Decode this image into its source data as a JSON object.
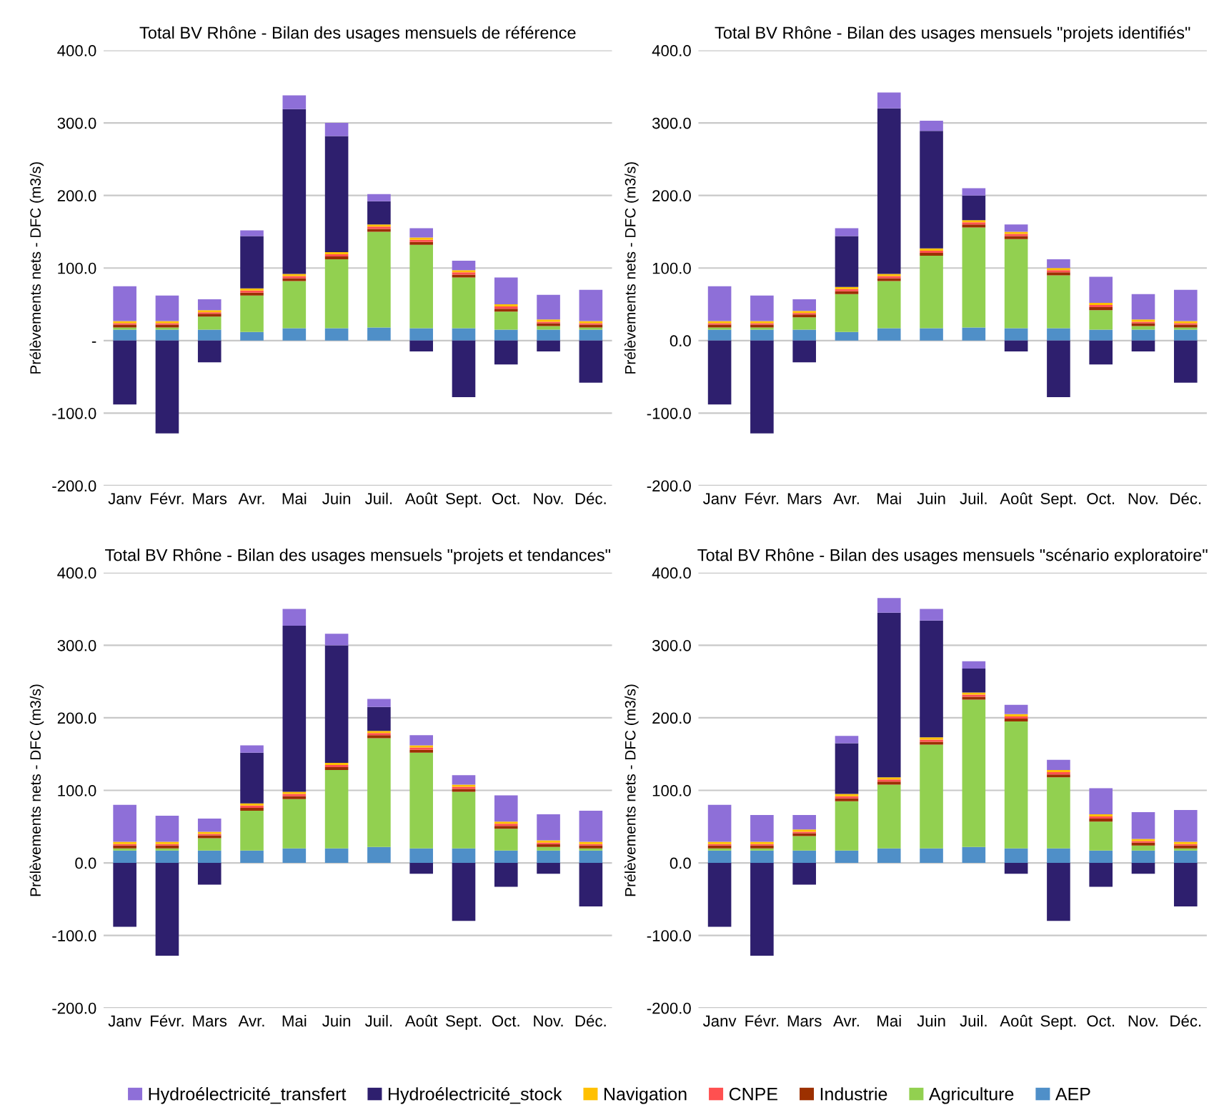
{
  "chart_data": [
    {
      "type": "bar",
      "stacked": true,
      "title": "Total BV Rhône - Bilan des usages mensuels de référence",
      "ylabel": "Prélèvements nets - DFC (m3/s)",
      "categories": [
        "Janv",
        "Févr.",
        "Mars",
        "Avr.",
        "Mai",
        "Juin",
        "Juil.",
        "Août",
        "Sept.",
        "Oct.",
        "Nov.",
        "Déc."
      ],
      "ylim": [
        -200,
        400
      ],
      "yticks": [
        {
          "value": -200,
          "label": "-200.0"
        },
        {
          "value": -100,
          "label": "-100.0"
        },
        {
          "value": 0,
          "label": "-"
        },
        {
          "value": 100,
          "label": "100.0"
        },
        {
          "value": 200,
          "label": "200.0"
        },
        {
          "value": 300,
          "label": "300.0"
        },
        {
          "value": 400,
          "label": "400.0"
        }
      ],
      "grid": "y",
      "series": [
        {
          "color": "#4f8fc8",
          "values": [
            15,
            15,
            15,
            12,
            17,
            17,
            18,
            17,
            17,
            15,
            15,
            15
          ]
        },
        {
          "color": "#92d050",
          "values": [
            3,
            3,
            18,
            50,
            65,
            95,
            132,
            115,
            70,
            25,
            5,
            3
          ]
        },
        {
          "color": "#9c3000",
          "values": [
            4,
            4,
            4,
            4,
            4,
            4,
            4,
            4,
            4,
            4,
            4,
            4
          ]
        },
        {
          "color": "#ff5050",
          "values": [
            2,
            2,
            2,
            3,
            3,
            3,
            3,
            3,
            3,
            3,
            2,
            2
          ]
        },
        {
          "color": "#ffc000",
          "values": [
            3,
            3,
            3,
            3,
            3,
            3,
            3,
            3,
            3,
            3,
            3,
            3
          ]
        },
        {
          "color": "#2e1f6e",
          "values": [
            -88,
            -128,
            -30,
            72,
            227,
            160,
            32,
            -15,
            -78,
            -33,
            -15,
            -58
          ]
        },
        {
          "color": "#8e6fd8",
          "values": [
            48,
            35,
            15,
            8,
            19,
            18,
            10,
            13,
            13,
            37,
            34,
            43
          ]
        }
      ]
    },
    {
      "type": "bar",
      "stacked": true,
      "title": "Total BV Rhône - Bilan des usages mensuels \"projets identifiés\"",
      "ylabel": "Prélèvements nets - DFC (m3/s)",
      "categories": [
        "Janv",
        "Févr.",
        "Mars",
        "Avr.",
        "Mai",
        "Juin",
        "Juil.",
        "Août",
        "Sept.",
        "Oct.",
        "Nov.",
        "Déc."
      ],
      "ylim": [
        -200,
        400
      ],
      "yticks": [
        {
          "value": -200,
          "label": "-200.0"
        },
        {
          "value": -100,
          "label": "-100.0"
        },
        {
          "value": 0,
          "label": "0.0"
        },
        {
          "value": 100,
          "label": "100.0"
        },
        {
          "value": 200,
          "label": "200.0"
        },
        {
          "value": 300,
          "label": "300.0"
        },
        {
          "value": 400,
          "label": "400.0"
        }
      ],
      "grid": "y",
      "series": [
        {
          "color": "#4f8fc8",
          "values": [
            15,
            15,
            15,
            12,
            17,
            17,
            18,
            17,
            17,
            15,
            15,
            15
          ]
        },
        {
          "color": "#92d050",
          "values": [
            3,
            3,
            17,
            52,
            65,
            100,
            138,
            123,
            73,
            27,
            5,
            3
          ]
        },
        {
          "color": "#9c3000",
          "values": [
            4,
            4,
            4,
            4,
            4,
            4,
            4,
            4,
            4,
            4,
            4,
            4
          ]
        },
        {
          "color": "#ff5050",
          "values": [
            2,
            2,
            2,
            3,
            3,
            3,
            3,
            3,
            3,
            3,
            2,
            2
          ]
        },
        {
          "color": "#ffc000",
          "values": [
            3,
            3,
            3,
            3,
            3,
            3,
            3,
            3,
            3,
            3,
            3,
            3
          ]
        },
        {
          "color": "#2e1f6e",
          "values": [
            -88,
            -128,
            -30,
            70,
            228,
            162,
            34,
            -15,
            -78,
            -33,
            -15,
            -58
          ]
        },
        {
          "color": "#8e6fd8",
          "values": [
            48,
            35,
            16,
            11,
            22,
            14,
            10,
            10,
            12,
            36,
            35,
            43
          ]
        }
      ]
    },
    {
      "type": "bar",
      "stacked": true,
      "title": "Total BV Rhône - Bilan des usages mensuels \"projets et tendances\"",
      "ylabel": "Prélèvements nets - DFC (m3/s)",
      "categories": [
        "Janv",
        "Févr.",
        "Mars",
        "Avr.",
        "Mai",
        "Juin",
        "Juil.",
        "Août",
        "Sept.",
        "Oct.",
        "Nov.",
        "Déc."
      ],
      "ylim": [
        -200,
        400
      ],
      "yticks": [
        {
          "value": -200,
          "label": "-200.0"
        },
        {
          "value": -100,
          "label": "-100.0"
        },
        {
          "value": 0,
          "label": "0.0"
        },
        {
          "value": 100,
          "label": "100.0"
        },
        {
          "value": 200,
          "label": "200.0"
        },
        {
          "value": 300,
          "label": "300.0"
        },
        {
          "value": 400,
          "label": "400.0"
        }
      ],
      "grid": "y",
      "series": [
        {
          "color": "#4f8fc8",
          "values": [
            17,
            17,
            17,
            17,
            20,
            20,
            22,
            20,
            20,
            17,
            17,
            17
          ]
        },
        {
          "color": "#92d050",
          "values": [
            3,
            3,
            17,
            55,
            68,
            108,
            150,
            132,
            78,
            30,
            5,
            3
          ]
        },
        {
          "color": "#9c3000",
          "values": [
            4,
            4,
            4,
            4,
            4,
            4,
            4,
            4,
            4,
            4,
            4,
            4
          ]
        },
        {
          "color": "#ff5050",
          "values": [
            2,
            2,
            2,
            3,
            3,
            3,
            3,
            3,
            3,
            3,
            2,
            2
          ]
        },
        {
          "color": "#ffc000",
          "values": [
            3,
            3,
            3,
            3,
            3,
            3,
            3,
            3,
            3,
            3,
            3,
            3
          ]
        },
        {
          "color": "#2e1f6e",
          "values": [
            -88,
            -128,
            -30,
            70,
            229,
            162,
            33,
            -15,
            -80,
            -33,
            -15,
            -60
          ]
        },
        {
          "color": "#8e6fd8",
          "values": [
            51,
            36,
            18,
            10,
            23,
            16,
            11,
            14,
            13,
            36,
            36,
            43
          ]
        }
      ]
    },
    {
      "type": "bar",
      "stacked": true,
      "title": "Total BV Rhône - Bilan des usages mensuels \"scénario exploratoire\"",
      "ylabel": "Prélèvements nets - DFC (m3/s)",
      "categories": [
        "Janv",
        "Févr.",
        "Mars",
        "Avr.",
        "Mai",
        "Juin",
        "Juil.",
        "Août",
        "Sept.",
        "Oct.",
        "Nov.",
        "Déc."
      ],
      "ylim": [
        -200,
        400
      ],
      "yticks": [
        {
          "value": -200,
          "label": "-200.0"
        },
        {
          "value": -100,
          "label": "-100.0"
        },
        {
          "value": 0,
          "label": "0.0"
        },
        {
          "value": 100,
          "label": "100.0"
        },
        {
          "value": 200,
          "label": "200.0"
        },
        {
          "value": 300,
          "label": "300.0"
        },
        {
          "value": 400,
          "label": "400.0"
        }
      ],
      "grid": "y",
      "legend": "bottom",
      "series": [
        {
          "name": "AEP",
          "color": "#4f8fc8",
          "values": [
            17,
            17,
            17,
            17,
            20,
            20,
            22,
            20,
            20,
            17,
            17,
            17
          ]
        },
        {
          "name": "Agriculture",
          "color": "#92d050",
          "values": [
            3,
            3,
            20,
            68,
            88,
            143,
            203,
            175,
            98,
            40,
            7,
            3
          ]
        },
        {
          "name": "Industrie",
          "color": "#9c3000",
          "values": [
            4,
            4,
            4,
            4,
            4,
            4,
            4,
            4,
            4,
            4,
            4,
            4
          ]
        },
        {
          "name": "CNPE",
          "color": "#ff5050",
          "values": [
            2,
            2,
            2,
            3,
            3,
            3,
            3,
            3,
            3,
            3,
            2,
            2
          ]
        },
        {
          "name": "Navigation",
          "color": "#ffc000",
          "values": [
            3,
            3,
            3,
            3,
            3,
            3,
            3,
            3,
            3,
            3,
            3,
            3
          ]
        },
        {
          "name": "Hydroélectricité_stock",
          "color": "#2e1f6e",
          "values": [
            -88,
            -128,
            -30,
            70,
            227,
            161,
            33,
            -15,
            -80,
            -33,
            -15,
            -60
          ]
        },
        {
          "name": "Hydroélectricité_transfert",
          "color": "#8e6fd8",
          "values": [
            51,
            37,
            20,
            10,
            20,
            16,
            10,
            13,
            14,
            36,
            37,
            44
          ]
        }
      ]
    }
  ]
}
